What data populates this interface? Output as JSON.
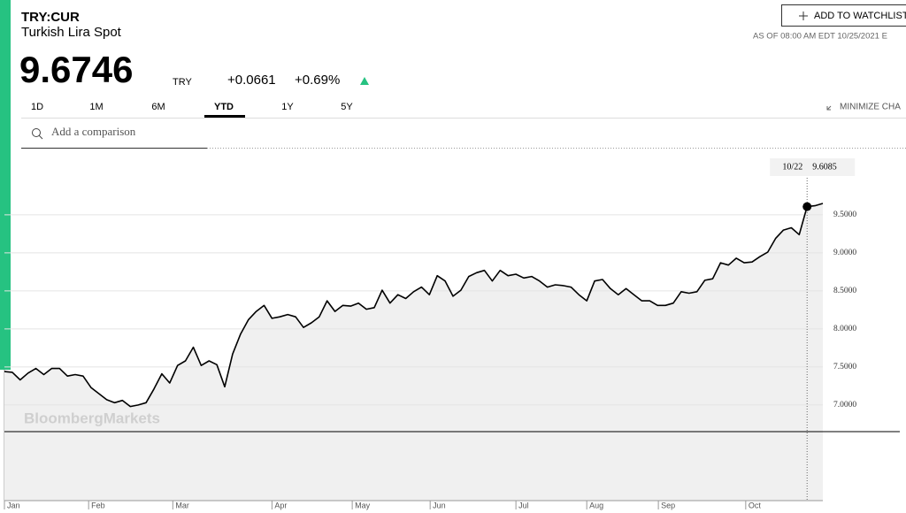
{
  "header": {
    "symbol": "TRY:CUR",
    "name": "Turkish Lira Spot",
    "price": "9.6746",
    "currency": "TRY",
    "change": "+0.0661",
    "change_pct": "+0.69%",
    "watchlist": "ADD TO WATCHLIST",
    "as_of": "AS OF 08:00 AM EDT 10/25/2021 E"
  },
  "tabs": {
    "items": [
      "1D",
      "1M",
      "6M",
      "YTD",
      "1Y",
      "5Y"
    ],
    "active": 3,
    "minimize": "MINIMIZE CHA",
    "search": "Add a comparison"
  },
  "chart_data": {
    "type": "line",
    "color": "#000000",
    "fill": "#f0f0f0",
    "watermark": "BloombergMarkets",
    "values": [
      7.44,
      7.43,
      7.33,
      7.42,
      7.48,
      7.4,
      7.48,
      7.48,
      7.38,
      7.4,
      7.38,
      7.23,
      7.15,
      7.07,
      7.03,
      7.06,
      6.98,
      7.0,
      7.03,
      7.21,
      7.41,
      7.29,
      7.52,
      7.58,
      7.76,
      7.52,
      7.58,
      7.53,
      7.24,
      7.67,
      7.93,
      8.12,
      8.23,
      8.31,
      8.14,
      8.16,
      8.19,
      8.16,
      8.02,
      8.08,
      8.16,
      8.37,
      8.23,
      8.31,
      8.3,
      8.34,
      8.26,
      8.28,
      8.51,
      8.34,
      8.45,
      8.4,
      8.49,
      8.55,
      8.45,
      8.7,
      8.63,
      8.43,
      8.51,
      8.69,
      8.74,
      8.77,
      8.63,
      8.77,
      8.7,
      8.72,
      8.67,
      8.69,
      8.63,
      8.55,
      8.58,
      8.57,
      8.55,
      8.45,
      8.37,
      8.63,
      8.65,
      8.53,
      8.45,
      8.53,
      8.45,
      8.37,
      8.37,
      8.31,
      8.31,
      8.34,
      8.49,
      8.47,
      8.49,
      8.64,
      8.66,
      8.87,
      8.84,
      8.93,
      8.87,
      8.88,
      8.95,
      9.01,
      9.19,
      9.3,
      9.33,
      9.24,
      9.6085,
      9.62,
      9.65
    ],
    "xlim": [
      0,
      104
    ],
    "xticks": [
      {
        "value": 0,
        "label": "Jan"
      },
      {
        "value": 10.7,
        "label": "Feb"
      },
      {
        "value": 21.4,
        "label": "Mar"
      },
      {
        "value": 34,
        "label": "Apr"
      },
      {
        "value": 44.2,
        "label": "May"
      },
      {
        "value": 54.1,
        "label": "Jun"
      },
      {
        "value": 65,
        "label": "Jul"
      },
      {
        "value": 74,
        "label": "Aug"
      },
      {
        "value": 83.1,
        "label": "Sep"
      },
      {
        "value": 94.2,
        "label": "Oct"
      }
    ],
    "ylim": [
      6.65,
      10.29
    ],
    "yticks": [
      {
        "value": 7,
        "label": "7.0000"
      },
      {
        "value": 7.5,
        "label": "7.5000"
      },
      {
        "value": 8,
        "label": "8.0000"
      },
      {
        "value": 8.5,
        "label": "8.5000"
      },
      {
        "value": 9,
        "label": "9.0000"
      },
      {
        "value": 9.5,
        "label": "9.5000"
      }
    ],
    "grid": true,
    "hover_index": 102,
    "hover_label": "10/22"
  }
}
